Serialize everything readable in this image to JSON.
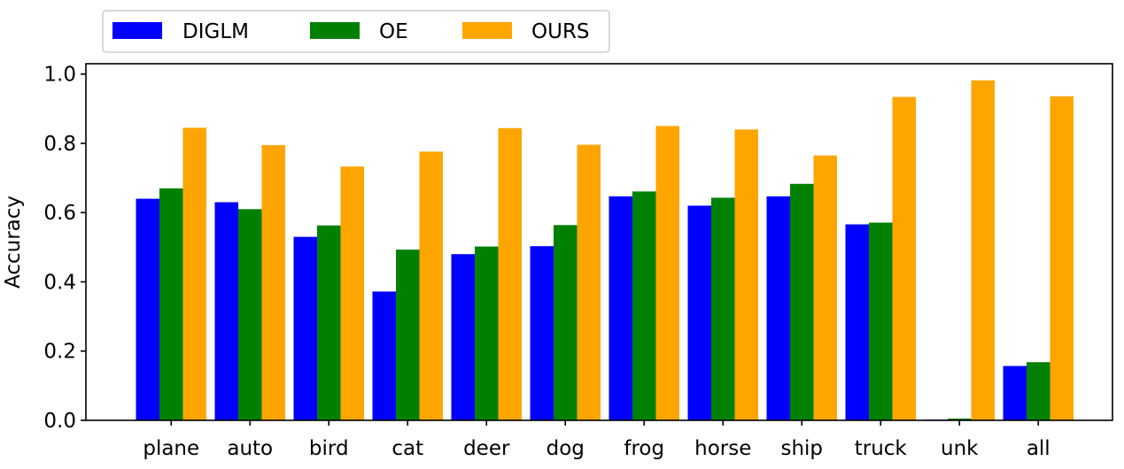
{
  "chart_data": {
    "type": "bar",
    "title": "",
    "xlabel": "",
    "ylabel": "Accuracy",
    "ylim": [
      0,
      1.03
    ],
    "yticks": [
      "0.0",
      "0.2",
      "0.4",
      "0.6",
      "0.8",
      "1.0"
    ],
    "grid": false,
    "legend_position": "top-left",
    "categories": [
      "plane",
      "auto",
      "bird",
      "cat",
      "deer",
      "dog",
      "frog",
      "horse",
      "ship",
      "truck",
      "unk",
      "all"
    ],
    "series": [
      {
        "name": "DIGLM",
        "color": "#0000ff",
        "values": [
          0.64,
          0.63,
          0.53,
          0.372,
          0.48,
          0.503,
          0.647,
          0.62,
          0.647,
          0.566,
          0.002,
          0.157
        ]
      },
      {
        "name": "OE",
        "color": "#008000",
        "values": [
          0.67,
          0.61,
          0.563,
          0.493,
          0.502,
          0.564,
          0.661,
          0.643,
          0.683,
          0.571,
          0.005,
          0.168
        ]
      },
      {
        "name": "OURS",
        "color": "#ffa500",
        "values": [
          0.845,
          0.795,
          0.733,
          0.776,
          0.844,
          0.796,
          0.85,
          0.84,
          0.765,
          0.934,
          0.982,
          0.936
        ]
      }
    ]
  }
}
